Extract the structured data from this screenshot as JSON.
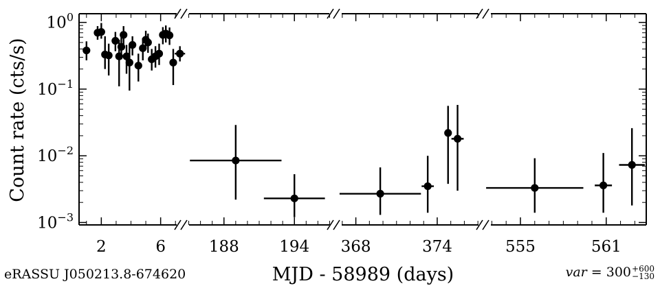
{
  "chart_data": {
    "type": "scatter",
    "error_bars": true,
    "xlabel": "MJD - 58989 (days)",
    "ylabel": "Count rate (cts/s)",
    "yscale": "log",
    "ylim": [
      0.00092,
      1.35
    ],
    "broken_x_axis": true,
    "segments": [
      {
        "xlim": [
          0.5,
          7.5
        ],
        "ticks": [
          2,
          6
        ]
      },
      {
        "xlim": [
          184.5,
          197.5
        ],
        "ticks": [
          188,
          194
        ]
      },
      {
        "xlim": [
          366.5,
          377.5
        ],
        "ticks": [
          368,
          374
        ]
      },
      {
        "xlim": [
          552.5,
          563.8
        ],
        "ticks": [
          555,
          561
        ]
      }
    ],
    "y_ticks": [
      {
        "value": 1,
        "base": "10",
        "exp": "0"
      },
      {
        "value": 0.1,
        "base": "10",
        "exp": "−1"
      },
      {
        "value": 0.01,
        "base": "10",
        "exp": "−2"
      },
      {
        "value": 0.001,
        "base": "10",
        "exp": "−3"
      }
    ],
    "points": [
      {
        "x": 1.0,
        "y": 0.38,
        "y_lo": 0.27,
        "y_hi": 0.52,
        "x_err": 0.1
      },
      {
        "x": 1.75,
        "y": 0.7,
        "y_lo": 0.55,
        "y_hi": 0.88,
        "x_err": 0.1
      },
      {
        "x": 2.0,
        "y": 0.72,
        "y_lo": 0.57,
        "y_hi": 0.98,
        "x_err": 0.1
      },
      {
        "x": 2.25,
        "y": 0.33,
        "y_lo": 0.2,
        "y_hi": 0.62,
        "x_err": 0.1
      },
      {
        "x": 2.5,
        "y": 0.32,
        "y_lo": 0.16,
        "y_hi": 0.48,
        "x_err": 0.1
      },
      {
        "x": 2.95,
        "y": 0.53,
        "y_lo": 0.37,
        "y_hi": 0.72,
        "x_err": 0.1
      },
      {
        "x": 3.2,
        "y": 0.31,
        "y_lo": 0.11,
        "y_hi": 0.55,
        "x_err": 0.1
      },
      {
        "x": 3.35,
        "y": 0.43,
        "y_lo": 0.28,
        "y_hi": 0.62,
        "x_err": 0.1
      },
      {
        "x": 3.5,
        "y": 0.65,
        "y_lo": 0.47,
        "y_hi": 0.88,
        "x_err": 0.1
      },
      {
        "x": 3.7,
        "y": 0.31,
        "y_lo": 0.17,
        "y_hi": 0.46,
        "x_err": 0.1
      },
      {
        "x": 3.9,
        "y": 0.25,
        "y_lo": 0.095,
        "y_hi": 0.45,
        "x_err": 0.1
      },
      {
        "x": 4.1,
        "y": 0.46,
        "y_lo": 0.32,
        "y_hi": 0.62,
        "x_err": 0.1
      },
      {
        "x": 4.5,
        "y": 0.225,
        "y_lo": 0.13,
        "y_hi": 0.34,
        "x_err": 0.1
      },
      {
        "x": 4.8,
        "y": 0.41,
        "y_lo": 0.27,
        "y_hi": 0.58,
        "x_err": 0.1
      },
      {
        "x": 5.0,
        "y": 0.55,
        "y_lo": 0.4,
        "y_hi": 0.75,
        "x_err": 0.1
      },
      {
        "x": 5.15,
        "y": 0.5,
        "y_lo": 0.35,
        "y_hi": 0.68,
        "x_err": 0.1
      },
      {
        "x": 5.4,
        "y": 0.28,
        "y_lo": 0.19,
        "y_hi": 0.4,
        "x_err": 0.1
      },
      {
        "x": 5.65,
        "y": 0.31,
        "y_lo": 0.21,
        "y_hi": 0.44,
        "x_err": 0.1
      },
      {
        "x": 5.9,
        "y": 0.34,
        "y_lo": 0.23,
        "y_hi": 0.48,
        "x_err": 0.1
      },
      {
        "x": 6.15,
        "y": 0.65,
        "y_lo": 0.47,
        "y_hi": 0.85,
        "x_err": 0.1
      },
      {
        "x": 6.35,
        "y": 0.68,
        "y_lo": 0.5,
        "y_hi": 0.9,
        "x_err": 0.1
      },
      {
        "x": 6.6,
        "y": 0.64,
        "y_lo": 0.46,
        "y_hi": 0.84,
        "x_err": 0.1
      },
      {
        "x": 6.85,
        "y": 0.25,
        "y_lo": 0.115,
        "y_hi": 0.4,
        "x_err": 0.1
      },
      {
        "x": 7.3,
        "y": 0.34,
        "y_lo": 0.26,
        "y_hi": 0.44,
        "x_err": 0.35
      },
      {
        "x": 189.0,
        "y": 0.0085,
        "y_lo": 0.0022,
        "y_hi": 0.029,
        "x_err": 3.9
      },
      {
        "x": 194.0,
        "y": 0.0023,
        "y_lo": 0.0012,
        "y_hi": 0.0053,
        "x_err": 2.6
      },
      {
        "x": 369.8,
        "y": 0.0027,
        "y_lo": 0.0013,
        "y_hi": 0.0067,
        "x_err": 3.0
      },
      {
        "x": 373.3,
        "y": 0.0035,
        "y_lo": 0.0014,
        "y_hi": 0.01,
        "x_err": 0.45
      },
      {
        "x": 374.8,
        "y": 0.022,
        "y_lo": 0.0038,
        "y_hi": 0.056,
        "x_err": 0.2
      },
      {
        "x": 375.5,
        "y": 0.018,
        "y_lo": 0.003,
        "y_hi": 0.058,
        "x_err": 0.45
      },
      {
        "x": 556.0,
        "y": 0.0033,
        "y_lo": 0.0014,
        "y_hi": 0.0092,
        "x_err": 3.4
      },
      {
        "x": 560.8,
        "y": 0.0036,
        "y_lo": 0.0014,
        "y_hi": 0.011,
        "x_err": 0.6
      },
      {
        "x": 562.8,
        "y": 0.0073,
        "y_lo": 0.0018,
        "y_hi": 0.026,
        "x_err": 0.9
      }
    ]
  },
  "annotations": {
    "source_name": "eRASSU J050213.8-674620",
    "var_prefix": "var",
    "var_value": "= 300",
    "var_sup": "+600",
    "var_sub": "−130"
  }
}
